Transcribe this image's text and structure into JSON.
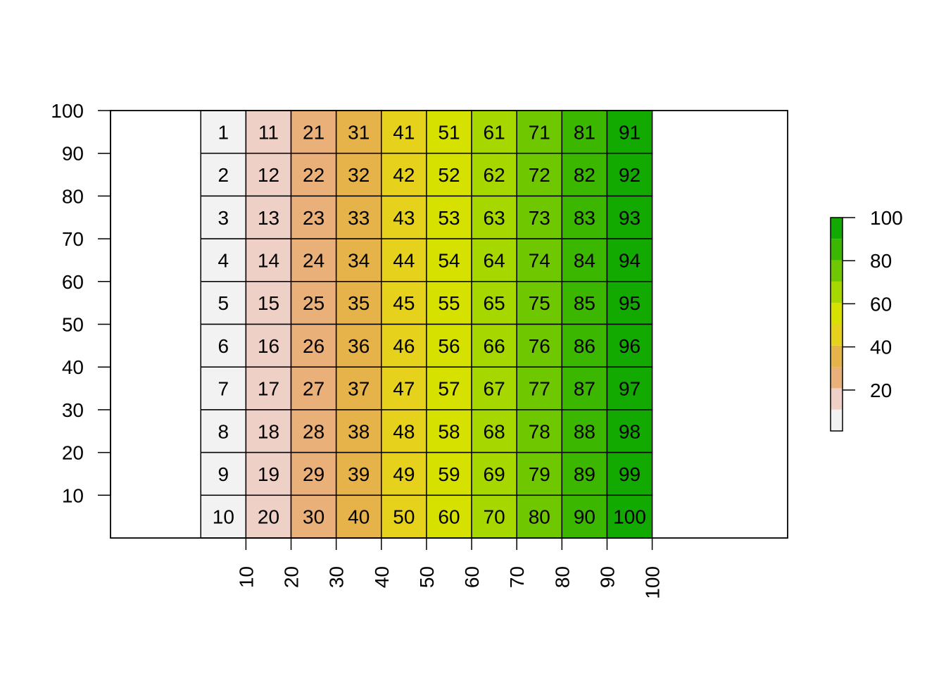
{
  "chart_data": {
    "type": "heatmap",
    "title": "",
    "xlabel": "",
    "ylabel": "",
    "rows": 10,
    "cols": 10,
    "cell_values": [
      [
        1,
        11,
        21,
        31,
        41,
        51,
        61,
        71,
        81,
        91
      ],
      [
        2,
        12,
        22,
        32,
        42,
        52,
        62,
        72,
        82,
        92
      ],
      [
        3,
        13,
        23,
        33,
        43,
        53,
        63,
        73,
        83,
        93
      ],
      [
        4,
        14,
        24,
        34,
        44,
        54,
        64,
        74,
        84,
        94
      ],
      [
        5,
        15,
        25,
        35,
        45,
        55,
        65,
        75,
        85,
        95
      ],
      [
        6,
        16,
        26,
        36,
        46,
        56,
        66,
        76,
        86,
        96
      ],
      [
        7,
        17,
        27,
        37,
        47,
        57,
        67,
        77,
        87,
        97
      ],
      [
        8,
        18,
        28,
        38,
        48,
        58,
        68,
        78,
        88,
        98
      ],
      [
        9,
        19,
        29,
        39,
        49,
        59,
        69,
        79,
        89,
        99
      ],
      [
        10,
        20,
        30,
        40,
        50,
        60,
        70,
        80,
        90,
        100
      ]
    ],
    "cell_colors": [
      "#F2F2F2",
      "#EFD0C6",
      "#EAB07A",
      "#E6B34A",
      "#E6D21C",
      "#D7E100",
      "#A6D800",
      "#6FC700",
      "#3CB700",
      "#12A900"
    ],
    "x_ticks": [
      10,
      20,
      30,
      40,
      50,
      60,
      70,
      80,
      90,
      100
    ],
    "y_ticks": [
      10,
      20,
      30,
      40,
      50,
      60,
      70,
      80,
      90,
      100
    ],
    "xlim": [
      -20,
      130
    ],
    "ylim": [
      0,
      100
    ],
    "grid": false,
    "legend": {
      "position": "right",
      "ticks": [
        20,
        40,
        60,
        80,
        100
      ],
      "range": [
        1,
        100
      ],
      "colors": [
        "#F2F2F2",
        "#EFD0C6",
        "#EAB07A",
        "#E6B34A",
        "#E6D21C",
        "#D7E100",
        "#A6D800",
        "#6FC700",
        "#3CB700",
        "#12A900"
      ]
    }
  }
}
